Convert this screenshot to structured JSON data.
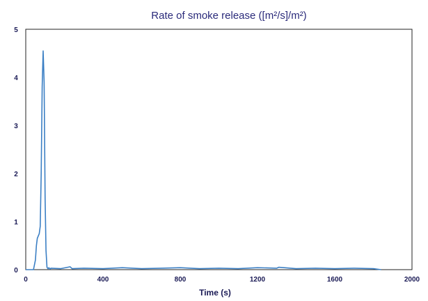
{
  "chart_data": {
    "type": "line",
    "title": "Rate of smoke release   ([m²/s]/m²)",
    "xlabel": "Time (s)",
    "ylabel": "",
    "xlim": [
      0,
      2000
    ],
    "ylim": [
      0,
      5
    ],
    "x_ticks": [
      "0",
      "400",
      "800",
      "1200",
      "1600",
      "2000"
    ],
    "y_ticks": [
      "0",
      "1",
      "2",
      "3",
      "4",
      "5"
    ],
    "grid": false,
    "legend": "none",
    "series": [
      {
        "color": "#3b7fc4",
        "baseline": 0.0,
        "x": [
          0,
          40,
          50,
          55,
          60,
          65,
          70,
          75,
          80,
          85,
          90,
          95,
          100,
          105,
          110,
          115,
          120,
          125,
          130,
          180,
          230,
          240,
          300,
          400,
          500,
          600,
          700,
          800,
          900,
          1000,
          1100,
          1200,
          1300,
          1310,
          1400,
          1500,
          1600,
          1700,
          1800,
          1820,
          1840
        ],
        "y": [
          0,
          0,
          0.2,
          0.5,
          0.65,
          0.7,
          0.75,
          0.9,
          2.0,
          3.8,
          4.55,
          3.9,
          1.5,
          0.4,
          0.05,
          0.02,
          0.04,
          0.01,
          0.03,
          0.02,
          0.06,
          0.02,
          0.03,
          0.02,
          0.04,
          0.02,
          0.03,
          0.04,
          0.02,
          0.03,
          0.02,
          0.04,
          0.03,
          0.05,
          0.02,
          0.03,
          0.02,
          0.03,
          0.02,
          0.01,
          0.0
        ]
      }
    ]
  }
}
